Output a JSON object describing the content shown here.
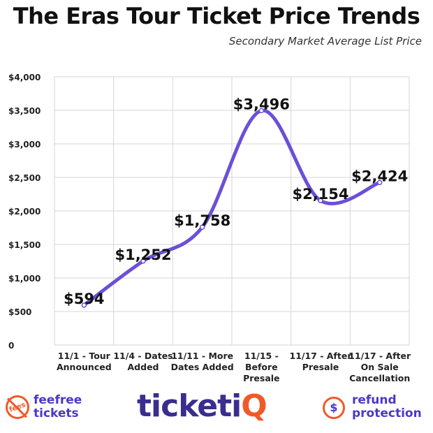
{
  "chart_data": {
    "type": "line",
    "title": "The Eras Tour Ticket Price Trends",
    "subtitle": "Secondary Market Average List Price",
    "categories": [
      "11/1 - Tour Announced",
      "11/4 - Dates Added",
      "11/11 - More Dates Added",
      "11/15 - Before Presale",
      "11/17 - After Presale",
      "11/17 - After On Sale Cancellation"
    ],
    "category_lines": [
      [
        "11/1 - Tour",
        "Announced"
      ],
      [
        "11/4 - Dates",
        "Added"
      ],
      [
        "11/11 - More",
        "Dates Added"
      ],
      [
        "11/15 -",
        "Before",
        "Presale"
      ],
      [
        "11/17 - After",
        "Presale"
      ],
      [
        "11/17 - After",
        "On Sale",
        "Cancellation"
      ]
    ],
    "series": [
      {
        "values": [
          594,
          1252,
          1758,
          3496,
          2154,
          2424
        ],
        "labels": [
          "$594",
          "$1,252",
          "$1,758",
          "$3,496",
          "$2,154",
          "$2,424"
        ]
      }
    ],
    "yticks": [
      {
        "value": 0,
        "label": "0"
      },
      {
        "value": 500,
        "label": "$500"
      },
      {
        "value": 1000,
        "label": "$1,000"
      },
      {
        "value": 1500,
        "label": "$1,500"
      },
      {
        "value": 2000,
        "label": "$2,000"
      },
      {
        "value": 2500,
        "label": "$2,500"
      },
      {
        "value": 3000,
        "label": "$3,000"
      },
      {
        "value": 3500,
        "label": "$3,500"
      },
      {
        "value": 4000,
        "label": "$4,000"
      }
    ],
    "ylim": [
      0,
      4000
    ],
    "grid": true,
    "line_color": "#6b4fd8"
  },
  "footer": {
    "left_brand_badge": "fees",
    "left_brand_line1": "feefree",
    "left_brand_line2": "tickets",
    "logo_main": "ticketi",
    "logo_accent": "Q",
    "right_brand_icon": "$",
    "right_brand_line1": "refund",
    "right_brand_line2": "protection"
  }
}
